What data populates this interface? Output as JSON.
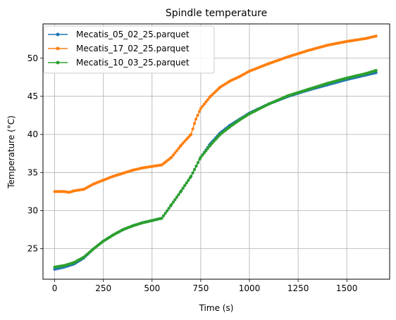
{
  "chart_data": {
    "type": "line",
    "title": "Spindle temperature",
    "xlabel": "Time (s)",
    "ylabel": "Temperature (°C)",
    "xlim": [
      -60,
      1720
    ],
    "ylim": [
      21,
      54.5
    ],
    "xticks": [
      0,
      250,
      500,
      750,
      1000,
      1250,
      1500
    ],
    "yticks": [
      25,
      30,
      35,
      40,
      45,
      50
    ],
    "grid": true,
    "legend_position": "top-left",
    "series": [
      {
        "name": "Mecatis_05_02_25.parquet",
        "color": "#1f77b4",
        "x": [
          0,
          50,
          100,
          150,
          200,
          250,
          300,
          350,
          400,
          450,
          500,
          550,
          600,
          650,
          700,
          750,
          800,
          850,
          900,
          950,
          1000,
          1100,
          1200,
          1300,
          1400,
          1500,
          1600,
          1650
        ],
        "y": [
          22.3,
          22.6,
          23.0,
          23.8,
          25.0,
          26.0,
          26.8,
          27.5,
          28.0,
          28.4,
          28.7,
          29.0,
          30.8,
          32.6,
          34.5,
          37.0,
          38.8,
          40.2,
          41.2,
          42.0,
          42.8,
          44.0,
          45.0,
          45.8,
          46.5,
          47.2,
          47.8,
          48.1
        ]
      },
      {
        "name": "Mecatis_17_02_25.parquet",
        "color": "#ff7f0e",
        "x": [
          0,
          50,
          75,
          100,
          150,
          200,
          250,
          300,
          350,
          400,
          450,
          500,
          550,
          600,
          650,
          700,
          725,
          750,
          800,
          850,
          900,
          950,
          1000,
          1100,
          1200,
          1300,
          1400,
          1500,
          1600,
          1650
        ],
        "y": [
          32.5,
          32.5,
          32.4,
          32.6,
          32.8,
          33.5,
          34.0,
          34.5,
          34.9,
          35.3,
          35.6,
          35.8,
          36.0,
          37.0,
          38.6,
          40.0,
          42.0,
          43.4,
          45.0,
          46.2,
          47.0,
          47.6,
          48.3,
          49.3,
          50.2,
          51.0,
          51.7,
          52.2,
          52.6,
          52.9
        ]
      },
      {
        "name": "Mecatis_10_03_25.parquet",
        "color": "#2ca02c",
        "x": [
          0,
          50,
          100,
          150,
          200,
          250,
          300,
          350,
          400,
          450,
          500,
          550,
          600,
          650,
          700,
          750,
          800,
          850,
          900,
          950,
          1000,
          1100,
          1200,
          1300,
          1400,
          1500,
          1600,
          1650
        ],
        "y": [
          22.6,
          22.8,
          23.2,
          23.9,
          25.0,
          26.0,
          26.8,
          27.5,
          28.0,
          28.4,
          28.7,
          29.0,
          30.8,
          32.6,
          34.5,
          37.0,
          38.6,
          40.0,
          41.0,
          41.9,
          42.7,
          44.0,
          45.1,
          45.9,
          46.7,
          47.4,
          48.0,
          48.4
        ]
      }
    ]
  }
}
